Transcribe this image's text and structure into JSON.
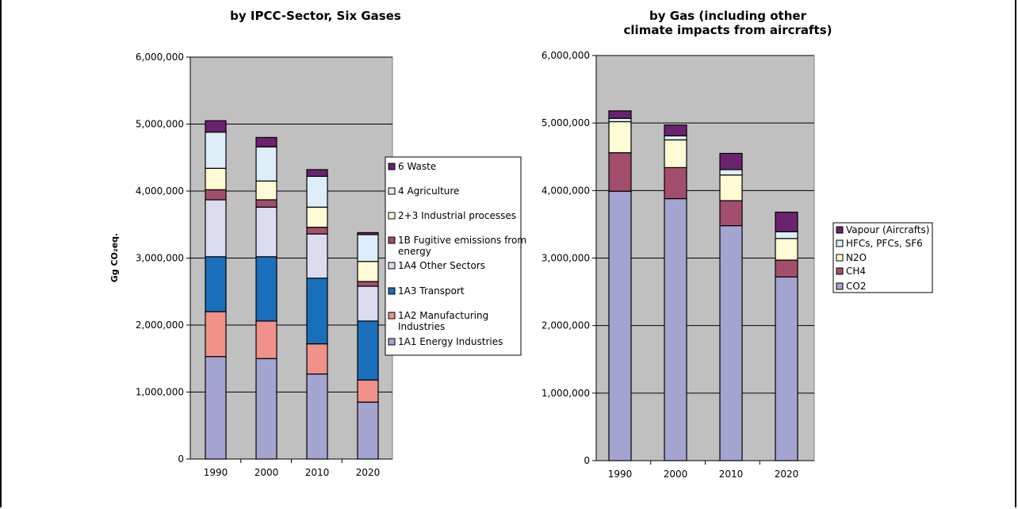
{
  "chart_data": [
    {
      "type": "bar",
      "stacked": true,
      "title": "by IPCC-Sector, Six Gases",
      "ylabel": "Gg CO₂eq.",
      "categories": [
        "1990",
        "2000",
        "2010",
        "2020"
      ],
      "ylim": [
        0,
        6000000
      ],
      "yticks": [
        "0",
        "1,000,000",
        "2,000,000",
        "3,000,000",
        "4,000,000",
        "5,000,000",
        "6,000,000"
      ],
      "legend_position": "right",
      "background": "#C0C0C0",
      "series": [
        {
          "name": "1A1 Energy Industries",
          "color": "#A4A4D0",
          "values": [
            1530000,
            1500000,
            1270000,
            850000
          ]
        },
        {
          "name": "1A2 Manufacturing Industries",
          "color": "#F0928A",
          "values": [
            670000,
            560000,
            450000,
            330000
          ]
        },
        {
          "name": "1A3 Transport",
          "color": "#1A6FBA",
          "values": [
            820000,
            960000,
            980000,
            880000
          ]
        },
        {
          "name": "1A4 Other Sectors",
          "color": "#DCDCF0",
          "values": [
            850000,
            740000,
            660000,
            520000
          ]
        },
        {
          "name": "1B Fugitive emissions from energy",
          "color": "#A44E6E",
          "values": [
            150000,
            110000,
            100000,
            70000
          ]
        },
        {
          "name": "2+3 Industrial processes",
          "color": "#FFFBD4",
          "values": [
            320000,
            280000,
            300000,
            300000
          ]
        },
        {
          "name": "4 Agriculture",
          "color": "#DDEEF8",
          "values": [
            540000,
            510000,
            460000,
            400000
          ]
        },
        {
          "name": "6 Waste",
          "color": "#6A236E",
          "values": [
            170000,
            140000,
            100000,
            30000
          ]
        }
      ],
      "legend_lines": [
        [
          "6 Waste"
        ],
        [
          "4 Agriculture"
        ],
        [
          "2+3 Industrial processes"
        ],
        [
          "1B Fugitive emissions from",
          "energy"
        ],
        [
          "1A4 Other Sectors"
        ],
        [
          "1A3 Transport"
        ],
        [
          "1A2 Manufacturing",
          "Industries"
        ],
        [
          "1A1 Energy Industries"
        ]
      ]
    },
    {
      "type": "bar",
      "stacked": true,
      "title": "by Gas (including other\nclimate impacts from aircrafts)",
      "title_lines": [
        "by Gas (including other",
        "climate impacts from aircrafts)"
      ],
      "ylabel": "",
      "categories": [
        "1990",
        "2000",
        "2010",
        "2020"
      ],
      "ylim": [
        0,
        6000000
      ],
      "yticks": [
        "0",
        "1,000,000",
        "2,000,000",
        "3,000,000",
        "4,000,000",
        "5,000,000",
        "6,000,000"
      ],
      "legend_position": "right",
      "background": "#C0C0C0",
      "series": [
        {
          "name": "CO2",
          "color": "#A4A4D0",
          "values": [
            3990000,
            3880000,
            3480000,
            2720000
          ]
        },
        {
          "name": "CH4",
          "color": "#A44E6E",
          "values": [
            570000,
            460000,
            370000,
            250000
          ]
        },
        {
          "name": "N2O",
          "color": "#FFFBD4",
          "values": [
            460000,
            410000,
            380000,
            320000
          ]
        },
        {
          "name": "HFCs, PFCs, SF6",
          "color": "#DDEEF8",
          "values": [
            50000,
            60000,
            80000,
            100000
          ]
        },
        {
          "name": "Vapour (Aircrafts)",
          "color": "#6A236E",
          "values": [
            110000,
            160000,
            240000,
            290000
          ]
        }
      ],
      "legend_lines": [
        [
          "Vapour (Aircrafts)"
        ],
        [
          "HFCs, PFCs, SF6"
        ],
        [
          "N2O"
        ],
        [
          "CH4"
        ],
        [
          "CO2"
        ]
      ]
    }
  ]
}
